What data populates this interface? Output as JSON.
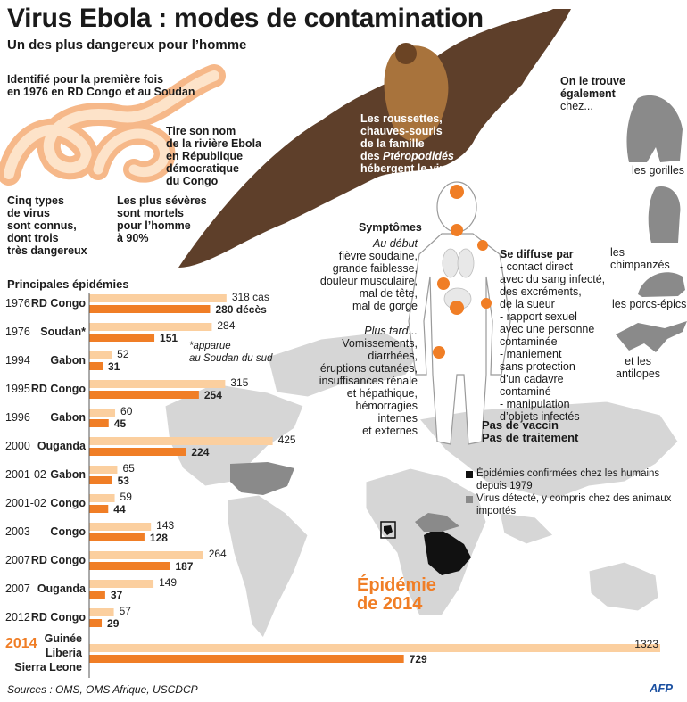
{
  "title": "Virus Ebola : modes de contamination",
  "subtitle": "Un des plus dangereux pour l’homme",
  "intro": {
    "identified": "Identifié pour la première fois\nen 1976 en RD Congo et au Soudan",
    "name_origin": "Tire son nom\nde la rivière Ebola\nen République\ndémocratique\ndu Congo",
    "types": "Cinq types\nde virus\nsont connus,\ndont trois\ntrès dangereux",
    "severe": "Les plus sévères\nsont mortels\npour l’homme\nà 90%"
  },
  "bat_text_before": "Les roussettes,\nchauves-souris\nde la famille\ndes ",
  "bat_text_italic": "Ptéropodidés",
  "bat_text_after": " hébergent le virus",
  "also_found": {
    "heading": "On le trouve\négalement",
    "sub": "chez...",
    "animals": [
      "les gorilles",
      "les chimpanzés",
      "les porcs-épics",
      "et les\nantilopes"
    ]
  },
  "symptoms": {
    "heading": "Symptômes",
    "early_label": "Au début",
    "early": "fièvre soudaine,\ngrande faiblesse,\ndouleur musculaire,\nmal de tête,\nmal de gorge",
    "later_label": "Plus tard...",
    "later": "Vomissements,\ndiarrhées,\néruptions cutanées,\ninsuffisances rénale\net hépathique,\nhémorragies\ninternes\net externes"
  },
  "spread": {
    "heading": "Se diffuse par",
    "items": "- contact direct\navec du sang infecté,\ndes excréments,\nde la sueur\n- rapport sexuel\navec une personne\ncontaminée\n- maniement\nsans protection\nd’un cadavre\ncontaminé\n- manipulation\nd’objets infectés"
  },
  "no_vaccine": "Pas de vaccin\nPas de traitement",
  "map_legend": [
    {
      "label": "Épidémies confirmées chez les humains\ndepuis 1979",
      "color": "#111111"
    },
    {
      "label": "Virus détecté, y compris chez des animaux\nimportés",
      "color": "#8a8a8a"
    }
  ],
  "epidemic_2014": "Épidémie\nde 2014",
  "source": "Sources : OMS, OMS Afrique, USCDCP",
  "credit": "AFP",
  "colors": {
    "cases": "#fbcf9f",
    "deaths": "#f07e26",
    "highlight": "#f07e26",
    "map_land": "#d4d4d4",
    "map_confirmed": "#111111",
    "map_detected": "#8a8a8a"
  },
  "chart_data": {
    "type": "bar",
    "title": "Principales épidémies",
    "orientation": "horizontal",
    "case_unit_label": "cas",
    "death_unit_label": "décès",
    "apparue_note": "*apparue\nau Soudan du sud",
    "categories": [
      {
        "year": "1976",
        "country": "RD Congo"
      },
      {
        "year": "1976",
        "country": "Soudan*"
      },
      {
        "year": "1994",
        "country": "Gabon"
      },
      {
        "year": "1995",
        "country": "RD Congo"
      },
      {
        "year": "1996",
        "country": "Gabon"
      },
      {
        "year": "2000",
        "country": "Ouganda"
      },
      {
        "year": "2001-02",
        "country": "Gabon"
      },
      {
        "year": "2001-02",
        "country": "Congo"
      },
      {
        "year": "2003",
        "country": "Congo"
      },
      {
        "year": "2007",
        "country": "RD Congo"
      },
      {
        "year": "2007",
        "country": "Ouganda"
      },
      {
        "year": "2012",
        "country": "RD Congo"
      },
      {
        "year": "2014",
        "country": "Guinée\nLiberia\nSierra Leone"
      }
    ],
    "series": [
      {
        "name": "cas",
        "values": [
          318,
          284,
          52,
          315,
          60,
          425,
          65,
          59,
          143,
          264,
          149,
          57,
          1323
        ]
      },
      {
        "name": "décès",
        "values": [
          280,
          151,
          31,
          254,
          45,
          224,
          53,
          44,
          128,
          187,
          37,
          29,
          729
        ]
      }
    ]
  }
}
